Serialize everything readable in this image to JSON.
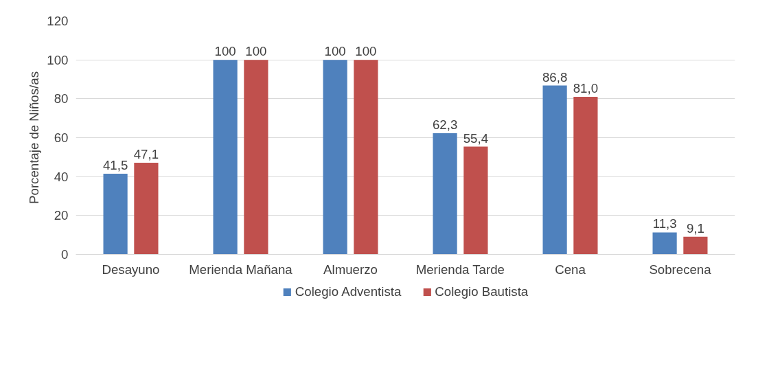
{
  "chart_data": {
    "type": "bar",
    "ylabel": "Porcentaje de Niños/as",
    "categories": [
      "Desayuno",
      "Merienda Mañana",
      "Almuerzo",
      "Merienda Tarde",
      "Cena",
      "Sobrecena"
    ],
    "series": [
      {
        "name": "Colegio Adventista",
        "color": "#4f81bd",
        "values": [
          41.5,
          100,
          100,
          62.3,
          86.8,
          11.3
        ],
        "value_labels": [
          "41,5",
          "100",
          "100",
          "62,3",
          "86,8",
          "11,3"
        ]
      },
      {
        "name": "Colegio Bautista",
        "color": "#c0504d",
        "values": [
          47.1,
          100,
          100,
          55.4,
          81.0,
          9.1
        ],
        "value_labels": [
          "47,1",
          "100",
          "100",
          "55,4",
          "81,0",
          "9,1"
        ]
      }
    ],
    "ylim": [
      0,
      120
    ],
    "yticks": [
      0,
      20,
      40,
      60,
      80,
      100,
      120
    ],
    "grid": "y",
    "legend": "bottom"
  }
}
